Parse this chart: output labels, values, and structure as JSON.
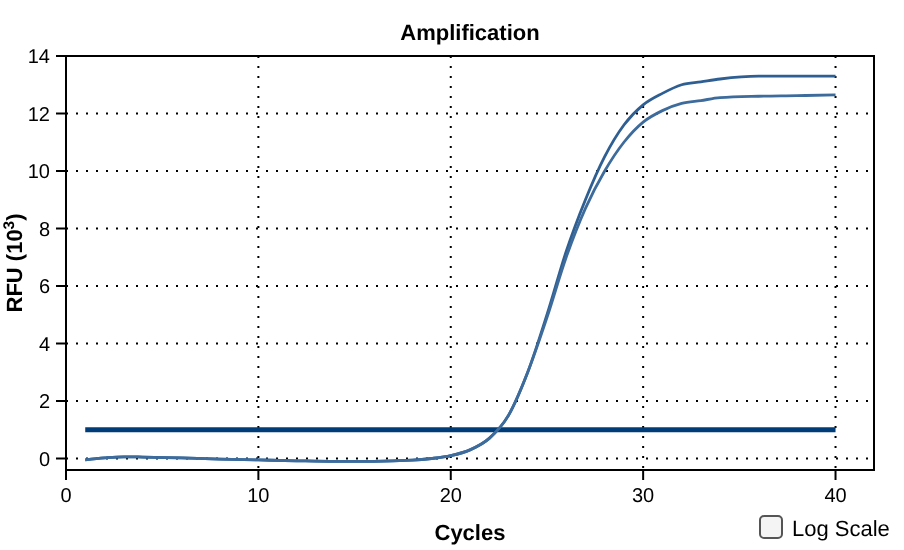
{
  "chart_data": {
    "type": "line",
    "title": "Amplification",
    "xlabel": "Cycles",
    "ylabel": "RFU (10$^{3}$)",
    "xlim": [
      0,
      42
    ],
    "ylim": [
      -0.4,
      14
    ],
    "xticks": [
      0,
      10,
      20,
      30,
      40
    ],
    "yticks": [
      0,
      2,
      4,
      6,
      8,
      10,
      12,
      14
    ],
    "grid": true,
    "marker": "none",
    "line_style": "solid",
    "x": [
      1,
      2,
      3,
      4,
      6,
      8,
      10,
      12,
      14,
      16,
      18,
      19,
      20,
      21,
      22,
      23,
      24,
      25,
      26,
      27,
      28,
      29,
      30,
      31,
      32,
      33,
      34,
      36,
      38,
      40
    ],
    "series": [
      {
        "color": "#2f5f92",
        "values": [
          -0.05,
          0.02,
          0.06,
          0.05,
          0.02,
          -0.02,
          -0.05,
          -0.08,
          -0.1,
          -0.1,
          -0.06,
          0.0,
          0.1,
          0.3,
          0.7,
          1.5,
          3.0,
          5.0,
          7.2,
          9.0,
          10.5,
          11.6,
          12.3,
          12.7,
          13.0,
          13.1,
          13.2,
          13.3,
          13.3,
          13.3
        ]
      },
      {
        "color": "#3d6c9c",
        "values": [
          -0.05,
          0.02,
          0.06,
          0.05,
          0.02,
          -0.02,
          -0.05,
          -0.08,
          -0.1,
          -0.1,
          -0.06,
          0.0,
          0.1,
          0.3,
          0.7,
          1.5,
          3.0,
          4.9,
          7.0,
          8.7,
          10.0,
          11.0,
          11.7,
          12.1,
          12.35,
          12.45,
          12.55,
          12.6,
          12.62,
          12.65
        ]
      }
    ],
    "ref_lines": [
      {
        "axis": "y",
        "value": 1.0,
        "color": "#003c78"
      }
    ],
    "annotations": [
      "Log Scale"
    ]
  }
}
